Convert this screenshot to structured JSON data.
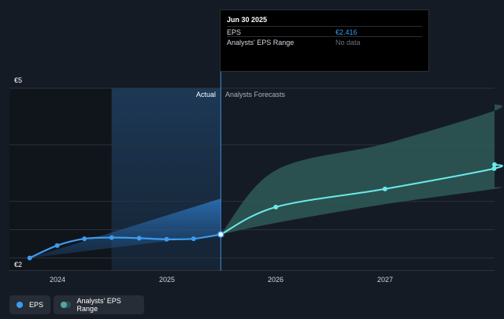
{
  "chart_data": {
    "type": "line",
    "y_labels": {
      "top": "€5",
      "bottom": "€2"
    },
    "ylim": [
      2,
      5
    ],
    "x_ticks": [
      "2024",
      "2025",
      "2026",
      "2027"
    ],
    "section_labels": {
      "actual": "Actual",
      "forecast": "Analysts Forecasts"
    },
    "series": [
      {
        "name": "EPS",
        "color": "#3d9bf0",
        "x": [
          "2023-09-30",
          "2023-12-31",
          "2024-03-31",
          "2024-06-30",
          "2024-09-30",
          "2024-12-31",
          "2025-03-31",
          "2025-06-30"
        ],
        "values": [
          2.0,
          2.22,
          2.34,
          2.36,
          2.35,
          2.33,
          2.34,
          2.416
        ]
      },
      {
        "name": "EPS forecast",
        "color": "#6ce8e8",
        "x": [
          "2025-06-30",
          "2025-12-31",
          "2026-12-31",
          "2027-12-31"
        ],
        "values": [
          2.416,
          2.9,
          3.22,
          3.58
        ]
      },
      {
        "name": "Analysts' EPS Range",
        "color": "#2e5a57",
        "x": [
          "2025-06-30",
          "2025-12-31",
          "2026-12-31",
          "2027-12-31"
        ],
        "high": [
          2.416,
          3.55,
          4.02,
          4.6
        ],
        "low": [
          2.416,
          2.62,
          2.95,
          3.22
        ]
      }
    ],
    "actual_range": {
      "high_end": 3.05
    }
  },
  "tooltip": {
    "date": "Jun 30 2025",
    "rows": [
      {
        "label": "EPS",
        "value": "€2.416",
        "color": "#3d9bf0"
      },
      {
        "label": "Analysts' EPS Range",
        "value": "No data",
        "color": "#6b7079"
      }
    ]
  },
  "legend": [
    {
      "label": "EPS",
      "color": "#3d9bf0"
    },
    {
      "label": "Analysts' EPS Range",
      "color": "#2e6e6a"
    }
  ]
}
